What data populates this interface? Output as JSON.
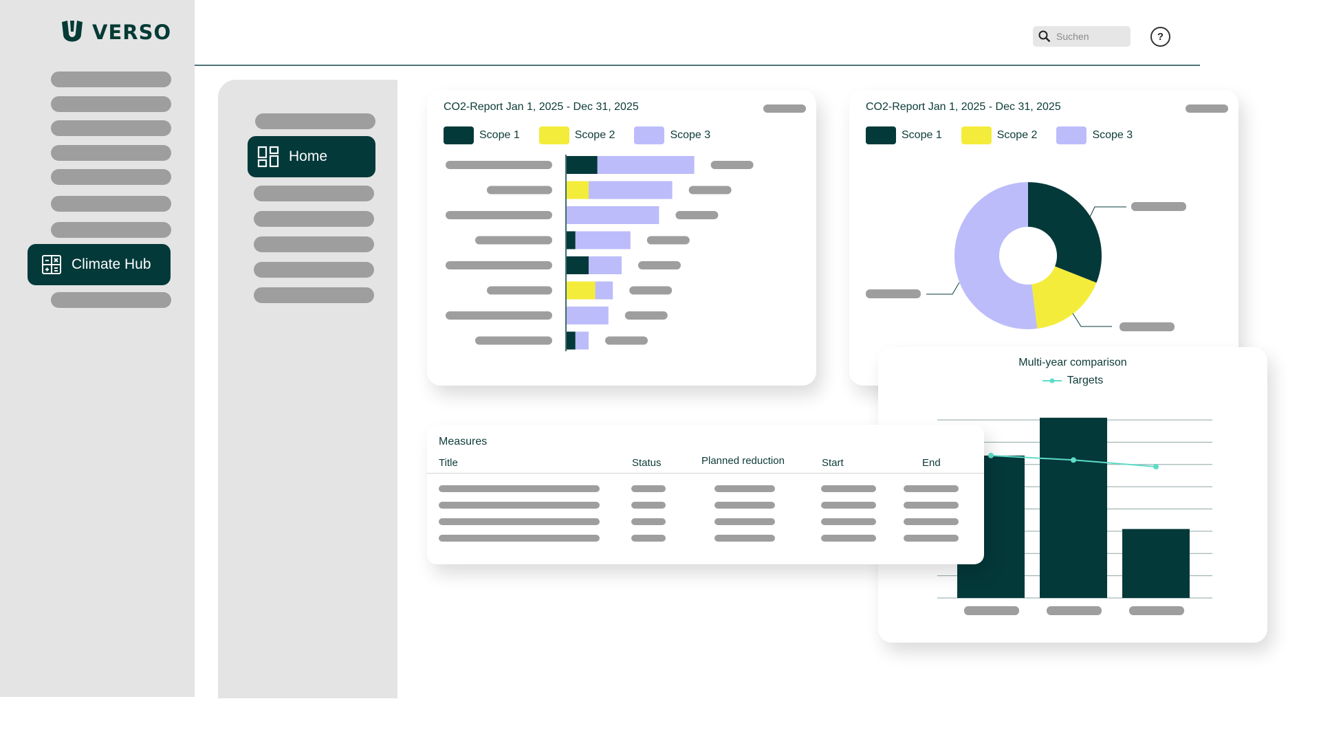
{
  "brand": {
    "name": "VERSO"
  },
  "left_nav": {
    "active_item": {
      "label": "Climate Hub",
      "icon": "calculator-icon"
    }
  },
  "sub_nav": {
    "active_item": {
      "label": "Home",
      "icon": "dashboard-grid-icon"
    }
  },
  "header": {
    "search": {
      "placeholder": "Suchen",
      "icon": "search-icon"
    },
    "help": {
      "label": "?",
      "icon": "help-icon"
    }
  },
  "colors": {
    "scope1": "#04393a",
    "scope2": "#f4ec3b",
    "scope3": "#bcbcfb",
    "target_line": "#5fdcc8"
  },
  "bar_report": {
    "title": "CO2-Report Jan 1, 2025 - Dec 31, 2025",
    "legend": [
      "Scope 1",
      "Scope 2",
      "Scope 3"
    ]
  },
  "pie_report": {
    "title": "CO2-Report Jan 1, 2025 - Dec 31, 2025",
    "legend": [
      "Scope 1",
      "Scope 2",
      "Scope 3"
    ]
  },
  "multi_year": {
    "title": "Multi-year comparison",
    "legend": "Targets"
  },
  "measures": {
    "title": "Measures",
    "columns": [
      "Title",
      "Status",
      "Planned reduction",
      "Start",
      "End"
    ]
  },
  "chart_data": [
    {
      "type": "bar",
      "orientation": "horizontal",
      "stacked": true,
      "title": "CO2-Report Jan 1, 2025 - Dec 31, 2025",
      "legend": [
        "Scope 1",
        "Scope 2",
        "Scope 3"
      ],
      "legend_placement": "top-left",
      "series": [
        {
          "name": "Scope 1",
          "values": [
            14,
            0,
            0,
            4,
            10,
            0,
            0,
            4
          ]
        },
        {
          "name": "Scope 2",
          "values": [
            0,
            10,
            0,
            0,
            0,
            13,
            0,
            0
          ]
        },
        {
          "name": "Scope 3",
          "values": [
            44,
            38,
            42,
            25,
            15,
            8,
            19,
            6
          ]
        }
      ]
    },
    {
      "type": "pie",
      "donut": true,
      "title": "CO2-Report Jan 1, 2025 - Dec 31, 2025",
      "legend": [
        "Scope 1",
        "Scope 2",
        "Scope 3"
      ],
      "legend_placement": "top-left",
      "slices": [
        {
          "name": "Scope 1",
          "value": 31
        },
        {
          "name": "Scope 2",
          "value": 17
        },
        {
          "name": "Scope 3",
          "value": 52
        }
      ]
    },
    {
      "type": "bar",
      "title": "Multi-year comparison",
      "legend_placement": "top",
      "grid": true,
      "ylim": [
        0,
        8
      ],
      "series": [
        {
          "name": "",
          "type": "bar",
          "values": [
            6.4,
            8.1,
            3.1
          ]
        },
        {
          "name": "Targets",
          "type": "line",
          "values": [
            6.4,
            6.2,
            5.9
          ]
        }
      ]
    }
  ]
}
